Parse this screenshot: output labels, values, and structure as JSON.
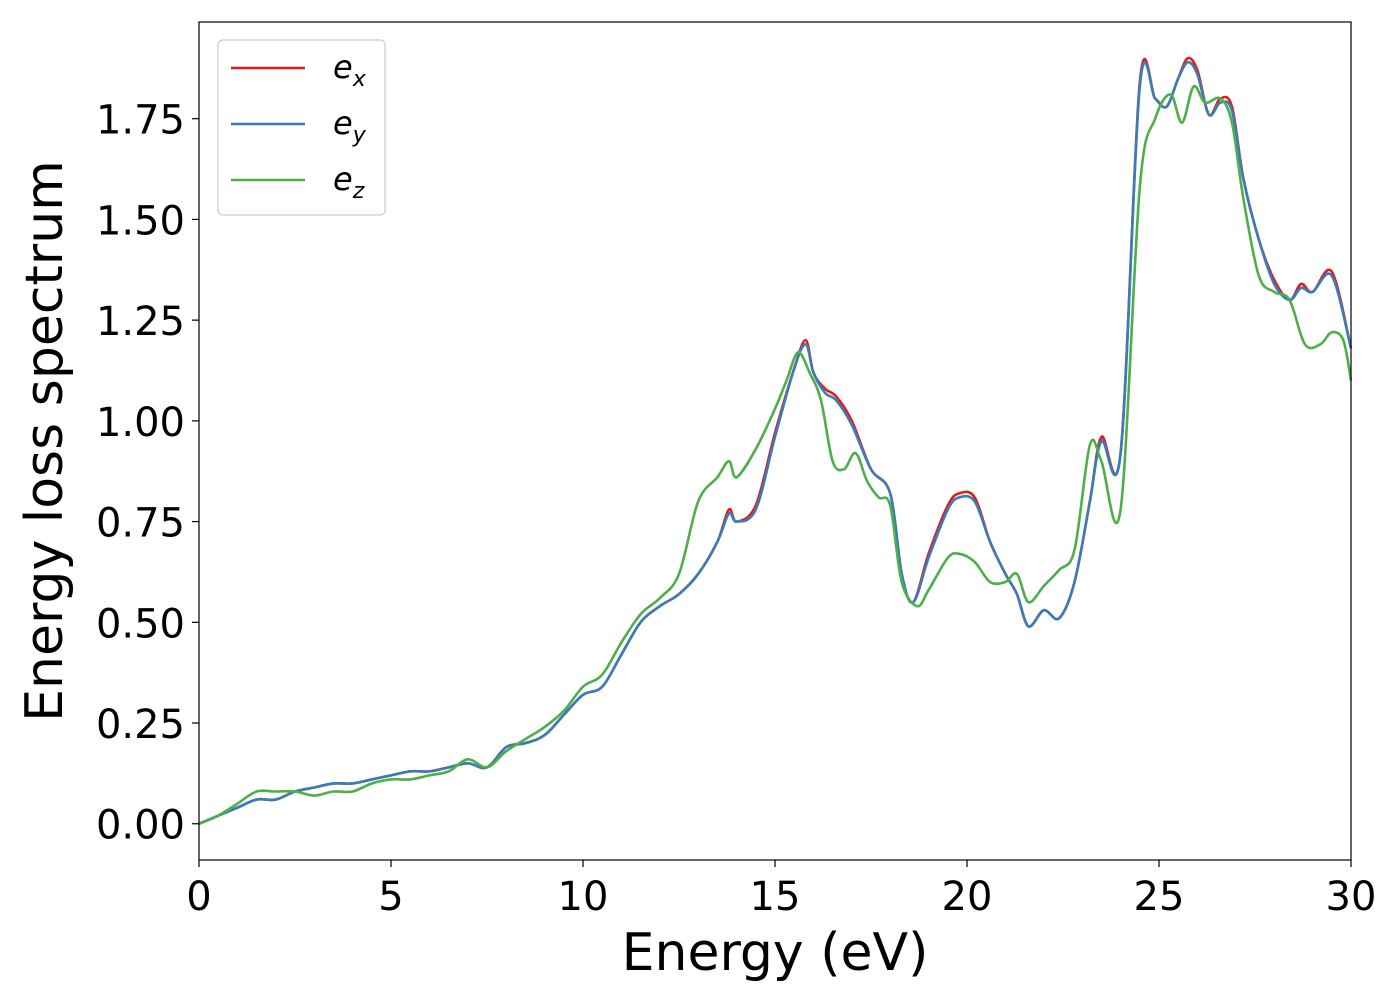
{
  "chart_data": {
    "type": "line",
    "title": "",
    "xlabel": "Energy (eV)",
    "ylabel": "Energy loss spectrum",
    "xlim": [
      0,
      30
    ],
    "ylim": [
      -0.09,
      1.99
    ],
    "xticks": [
      0,
      5,
      10,
      15,
      20,
      25,
      30
    ],
    "xtick_labels": [
      "0",
      "5",
      "10",
      "15",
      "20",
      "25",
      "30"
    ],
    "yticks": [
      0.0,
      0.25,
      0.5,
      0.75,
      1.0,
      1.25,
      1.5,
      1.75
    ],
    "ytick_labels": [
      "0.00",
      "0.25",
      "0.50",
      "0.75",
      "1.00",
      "1.25",
      "1.50",
      "1.75"
    ],
    "grid": false,
    "legend_position": "top-left",
    "series": [
      {
        "name_base": "e",
        "name_sub": "x",
        "color": "#e41a1c",
        "x": [
          0,
          0.5,
          1,
          1.5,
          2,
          2.5,
          3,
          3.5,
          4,
          4.5,
          5,
          5.5,
          6,
          6.5,
          7,
          7.5,
          8,
          8.5,
          9,
          9.5,
          10,
          10.5,
          11,
          11.5,
          12,
          12.5,
          13,
          13.5,
          13.8,
          14,
          14.5,
          15,
          15.5,
          15.8,
          16,
          16.3,
          16.6,
          17,
          17.5,
          18,
          18.3,
          18.6,
          19,
          19.5,
          19.8,
          20.2,
          20.6,
          21,
          21.3,
          21.6,
          22,
          22.4,
          22.8,
          23.2,
          23.5,
          24,
          24.5,
          24.9,
          25.2,
          25.5,
          25.75,
          26,
          26.3,
          26.6,
          26.9,
          27.2,
          27.6,
          28,
          28.4,
          28.7,
          29,
          29.5,
          30
        ],
        "y": [
          0,
          0.02,
          0.04,
          0.06,
          0.06,
          0.08,
          0.09,
          0.1,
          0.1,
          0.11,
          0.12,
          0.13,
          0.13,
          0.14,
          0.15,
          0.14,
          0.19,
          0.2,
          0.22,
          0.27,
          0.32,
          0.34,
          0.42,
          0.5,
          0.54,
          0.57,
          0.62,
          0.7,
          0.78,
          0.75,
          0.79,
          0.97,
          1.13,
          1.2,
          1.12,
          1.08,
          1.06,
          1.0,
          0.88,
          0.82,
          0.62,
          0.55,
          0.67,
          0.79,
          0.82,
          0.81,
          0.7,
          0.62,
          0.57,
          0.49,
          0.53,
          0.51,
          0.6,
          0.8,
          0.96,
          0.92,
          1.84,
          1.8,
          1.78,
          1.85,
          1.9,
          1.87,
          1.76,
          1.8,
          1.78,
          1.6,
          1.45,
          1.35,
          1.3,
          1.34,
          1.32,
          1.37,
          1.18
        ]
      },
      {
        "name_base": "e",
        "name_sub": "y",
        "color": "#377eb8",
        "x": [
          0,
          0.5,
          1,
          1.5,
          2,
          2.5,
          3,
          3.5,
          4,
          4.5,
          5,
          5.5,
          6,
          6.5,
          7,
          7.5,
          8,
          8.5,
          9,
          9.5,
          10,
          10.5,
          11,
          11.5,
          12,
          12.5,
          13,
          13.5,
          13.8,
          14,
          14.5,
          15,
          15.5,
          15.8,
          16,
          16.3,
          16.6,
          17,
          17.5,
          18,
          18.3,
          18.6,
          19,
          19.5,
          19.8,
          20.2,
          20.6,
          21,
          21.3,
          21.6,
          22,
          22.4,
          22.8,
          23.2,
          23.5,
          24,
          24.5,
          24.9,
          25.2,
          25.5,
          25.75,
          26,
          26.3,
          26.6,
          26.9,
          27.2,
          27.6,
          28,
          28.4,
          28.7,
          29,
          29.5,
          30
        ],
        "y": [
          0,
          0.02,
          0.04,
          0.06,
          0.06,
          0.08,
          0.09,
          0.1,
          0.1,
          0.11,
          0.12,
          0.13,
          0.13,
          0.14,
          0.15,
          0.14,
          0.19,
          0.2,
          0.22,
          0.27,
          0.32,
          0.34,
          0.42,
          0.5,
          0.54,
          0.57,
          0.62,
          0.7,
          0.77,
          0.75,
          0.78,
          0.96,
          1.13,
          1.19,
          1.12,
          1.07,
          1.05,
          0.99,
          0.88,
          0.82,
          0.62,
          0.55,
          0.66,
          0.78,
          0.81,
          0.8,
          0.7,
          0.62,
          0.57,
          0.49,
          0.53,
          0.51,
          0.6,
          0.8,
          0.95,
          0.92,
          1.83,
          1.8,
          1.78,
          1.85,
          1.89,
          1.86,
          1.76,
          1.79,
          1.77,
          1.6,
          1.45,
          1.34,
          1.3,
          1.33,
          1.32,
          1.36,
          1.18
        ]
      },
      {
        "name_base": "e",
        "name_sub": "z",
        "color": "#4daf4a",
        "x": [
          0,
          0.5,
          1,
          1.5,
          2,
          2.5,
          3,
          3.5,
          4,
          4.5,
          5,
          5.5,
          6,
          6.5,
          7,
          7.5,
          8,
          8.5,
          9,
          9.5,
          10,
          10.5,
          11,
          11.5,
          12,
          12.5,
          13,
          13.5,
          13.8,
          14,
          14.5,
          15,
          15.3,
          15.6,
          15.9,
          16.2,
          16.5,
          16.8,
          17.1,
          17.4,
          17.7,
          18,
          18.3,
          18.7,
          19,
          19.5,
          19.8,
          20.2,
          20.6,
          21,
          21.3,
          21.6,
          22,
          22.4,
          22.8,
          23.2,
          23.5,
          24,
          24.5,
          24.9,
          25.3,
          25.6,
          25.9,
          26.2,
          26.6,
          26.9,
          27.2,
          27.6,
          28,
          28.4,
          28.8,
          29.2,
          29.5,
          29.8,
          30
        ],
        "y": [
          0,
          0.02,
          0.05,
          0.08,
          0.08,
          0.08,
          0.07,
          0.08,
          0.08,
          0.1,
          0.11,
          0.11,
          0.12,
          0.13,
          0.16,
          0.14,
          0.18,
          0.21,
          0.24,
          0.28,
          0.34,
          0.37,
          0.45,
          0.52,
          0.56,
          0.62,
          0.8,
          0.86,
          0.9,
          0.86,
          0.93,
          1.03,
          1.1,
          1.17,
          1.12,
          1.05,
          0.9,
          0.88,
          0.92,
          0.85,
          0.81,
          0.79,
          0.6,
          0.54,
          0.58,
          0.66,
          0.67,
          0.65,
          0.6,
          0.6,
          0.62,
          0.55,
          0.59,
          0.63,
          0.68,
          0.94,
          0.9,
          0.78,
          1.58,
          1.75,
          1.81,
          1.74,
          1.83,
          1.79,
          1.8,
          1.74,
          1.55,
          1.36,
          1.32,
          1.3,
          1.19,
          1.19,
          1.22,
          1.2,
          1.1
        ]
      }
    ]
  }
}
